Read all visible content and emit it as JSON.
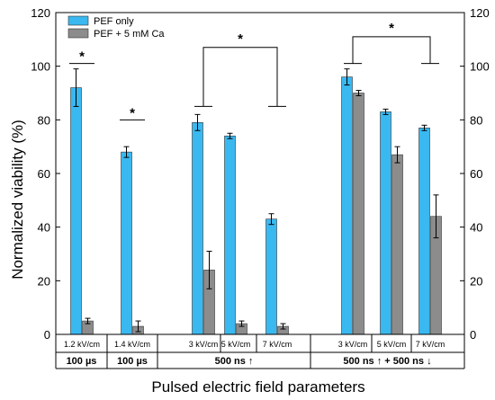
{
  "chart_data": {
    "type": "bar",
    "ylabel": "Normalized viability (%)",
    "xlabel": "Pulsed electric field parameters",
    "ylim": [
      0,
      120
    ],
    "yticks": [
      0,
      20,
      40,
      60,
      80,
      100,
      120
    ],
    "legend_position": "top-left",
    "categories": [
      "1.2 kV/cm",
      "1.4 kV/cm",
      "3 kV/cm",
      "5 kV/cm",
      "7 kV/cm",
      "3 kV/cm",
      "5 kV/cm",
      "7 kV/cm"
    ],
    "groups": [
      {
        "label": "100 µs",
        "span": [
          0,
          0
        ]
      },
      {
        "label": "100 µs",
        "span": [
          1,
          1
        ]
      },
      {
        "label": "500 ns ↑",
        "span": [
          2,
          4
        ]
      },
      {
        "label": "500 ns ↑ + 500 ns ↓",
        "span": [
          5,
          7
        ]
      }
    ],
    "series": [
      {
        "name": "PEF only",
        "color": "#3ab8f0",
        "values": [
          92,
          68,
          79,
          74,
          43,
          96,
          83,
          77
        ],
        "errors": [
          7,
          2,
          3,
          1,
          2,
          3,
          1,
          1
        ]
      },
      {
        "name": "PEF + 5 mM Ca",
        "color": "#8c8c8c",
        "values": [
          5,
          3,
          24,
          4,
          3,
          90,
          67,
          44
        ],
        "errors": [
          1,
          2,
          7,
          1,
          1,
          1,
          3,
          8
        ]
      }
    ],
    "significance": [
      {
        "label": "*",
        "type": "line",
        "from": 0,
        "to": 0,
        "y": 101
      },
      {
        "label": "*",
        "type": "line",
        "from": 1,
        "to": 1,
        "y": 80
      },
      {
        "label": "*",
        "type": "bracket",
        "from": 2,
        "to": 4,
        "y": 85,
        "top": 107
      },
      {
        "label": "*",
        "type": "bracket",
        "from": 5,
        "to": 7,
        "y": 101,
        "top": 111
      }
    ]
  }
}
